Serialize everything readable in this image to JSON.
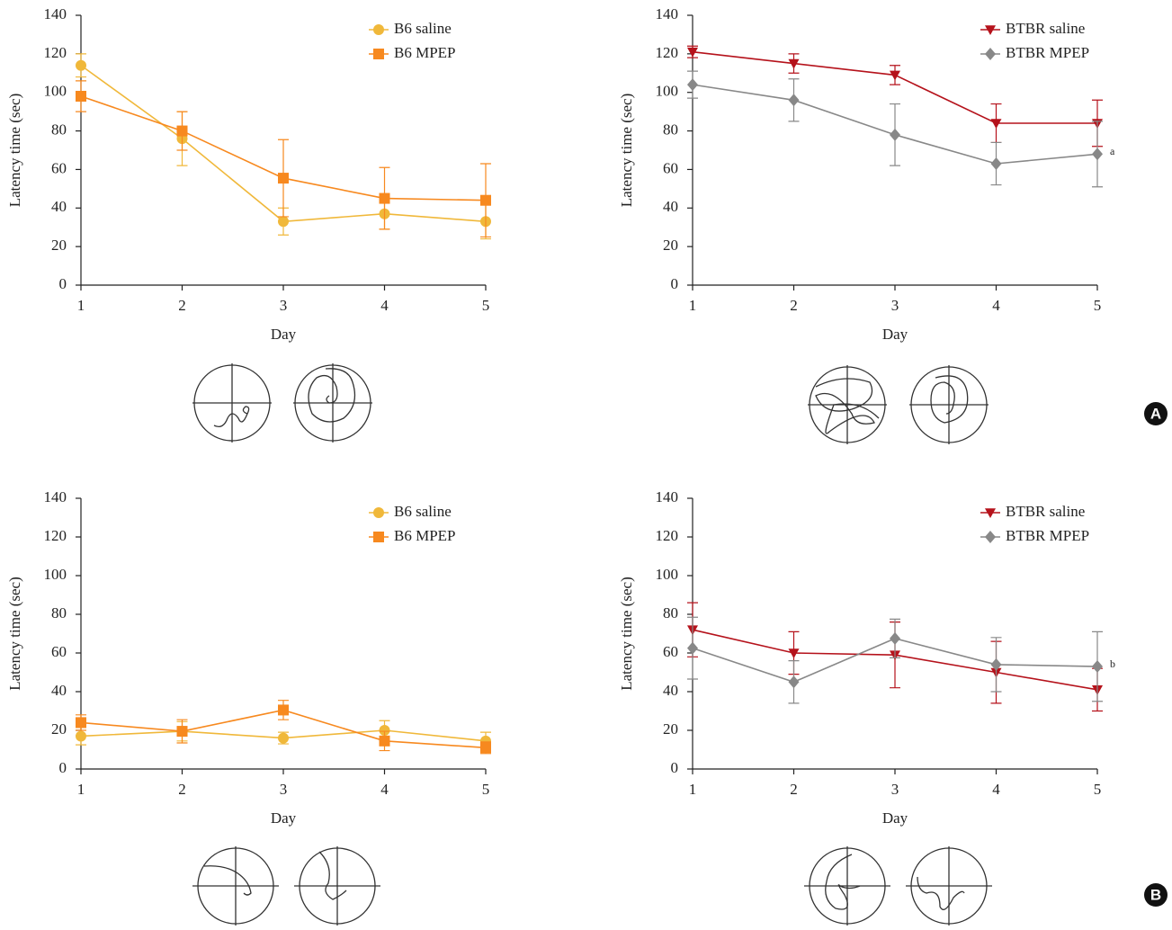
{
  "chart_data": [
    {
      "type": "line",
      "x_label": "Day",
      "y_label": "Latency time (sec)",
      "x": [
        1,
        2,
        3,
        4,
        5
      ],
      "xlim": [
        1,
        5
      ],
      "xticks": [
        1,
        2,
        3,
        4,
        5
      ],
      "ylim": [
        0,
        140
      ],
      "yticks": [
        0,
        20,
        40,
        60,
        80,
        100,
        120,
        140
      ],
      "legend": "upper right",
      "series": [
        {
          "name": "B6 saline",
          "color": "#f0b83a",
          "marker": "circle",
          "values": [
            114,
            76,
            33,
            37,
            33
          ],
          "errors": [
            6,
            14,
            7,
            8,
            9
          ]
        },
        {
          "name": "B6 MPEP",
          "color": "#f7891f",
          "marker": "square",
          "values": [
            98,
            80,
            55.5,
            45,
            44
          ],
          "errors": [
            8,
            10,
            20,
            16,
            19
          ]
        }
      ]
    },
    {
      "type": "line",
      "x_label": "Day",
      "y_label": "Latency time (sec)",
      "x": [
        1,
        2,
        3,
        4,
        5
      ],
      "xlim": [
        1,
        5
      ],
      "xticks": [
        1,
        2,
        3,
        4,
        5
      ],
      "ylim": [
        0,
        140
      ],
      "yticks": [
        0,
        20,
        40,
        60,
        80,
        100,
        120,
        140
      ],
      "legend": "upper right",
      "annotation": "a",
      "series": [
        {
          "name": "BTBR saline",
          "color": "#b5121b",
          "marker": "triangle-down",
          "values": [
            121,
            115,
            109,
            84,
            84
          ],
          "errors": [
            3,
            5,
            5,
            10,
            12
          ]
        },
        {
          "name": "BTBR MPEP",
          "color": "#888888",
          "marker": "diamond",
          "values": [
            104,
            96,
            78,
            63,
            68
          ],
          "errors": [
            7,
            11,
            16,
            11,
            17
          ]
        }
      ]
    },
    {
      "type": "line",
      "x_label": "Day",
      "y_label": "Latency time (sec)",
      "x": [
        1,
        2,
        3,
        4,
        5
      ],
      "xlim": [
        1,
        5
      ],
      "xticks": [
        1,
        2,
        3,
        4,
        5
      ],
      "ylim": [
        0,
        140
      ],
      "yticks": [
        0,
        20,
        40,
        60,
        80,
        100,
        120,
        140
      ],
      "legend": "upper right",
      "series": [
        {
          "name": "B6 saline",
          "color": "#f0b83a",
          "marker": "circle",
          "values": [
            17,
            19.5,
            16,
            20,
            14.5
          ],
          "errors": [
            4.5,
            5,
            3,
            5,
            4.5
          ]
        },
        {
          "name": "B6 MPEP",
          "color": "#f7891f",
          "marker": "square",
          "values": [
            24,
            19.5,
            30.5,
            14.5,
            11
          ],
          "errors": [
            4,
            6,
            5,
            5,
            3
          ]
        }
      ]
    },
    {
      "type": "line",
      "x_label": "Day",
      "y_label": "Latency time (sec)",
      "x": [
        1,
        2,
        3,
        4,
        5
      ],
      "xlim": [
        1,
        5
      ],
      "xticks": [
        1,
        2,
        3,
        4,
        5
      ],
      "ylim": [
        0,
        140
      ],
      "yticks": [
        0,
        20,
        40,
        60,
        80,
        100,
        120,
        140
      ],
      "legend": "upper right",
      "annotation": "b",
      "series": [
        {
          "name": "BTBR saline",
          "color": "#b5121b",
          "marker": "triangle-down",
          "values": [
            72,
            60,
            59,
            50,
            41
          ],
          "errors": [
            14,
            11,
            17,
            16,
            11
          ]
        },
        {
          "name": "BTBR MPEP",
          "color": "#888888",
          "marker": "diamond",
          "values": [
            62.5,
            45,
            67.5,
            54,
            53
          ],
          "errors": [
            16,
            11,
            10,
            14,
            18
          ]
        }
      ]
    }
  ],
  "panel_labels": [
    "A",
    "B"
  ]
}
